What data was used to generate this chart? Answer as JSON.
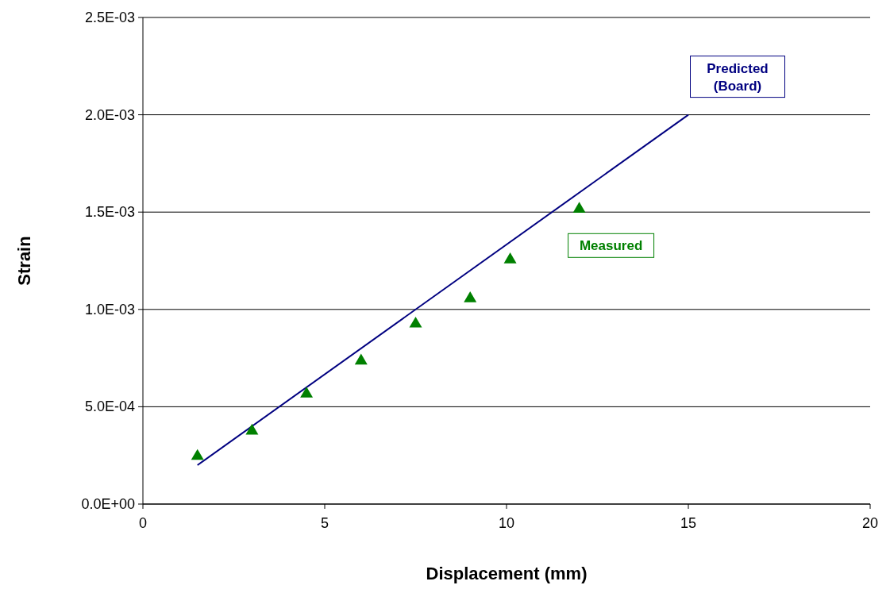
{
  "chart_data": {
    "type": "scatter",
    "xlabel": "Displacement (mm)",
    "ylabel": "Strain",
    "xlim": [
      0,
      20
    ],
    "xticks": [
      0,
      5,
      10,
      15,
      20
    ],
    "ylim": [
      0,
      0.0025
    ],
    "yticks": [
      {
        "value": 0,
        "label": "0.0E+00"
      },
      {
        "value": 0.0005,
        "label": "5.0E-04"
      },
      {
        "value": 0.001,
        "label": "1.0E-03"
      },
      {
        "value": 0.0015,
        "label": "1.5E-03"
      },
      {
        "value": 0.002,
        "label": "2.0E-03"
      },
      {
        "value": 0.0025,
        "label": "2.5E-03"
      }
    ],
    "grid": "y",
    "legend": false,
    "series": [
      {
        "name": "Predicted (Board)",
        "type": "line",
        "color": "#000080",
        "marker": "none",
        "line_style": "solid",
        "x": [
          1.5,
          15
        ],
        "values": [
          0.0002,
          0.002
        ]
      },
      {
        "name": "Measured",
        "color": "#008000",
        "marker": "triangle",
        "x": [
          1.5,
          3,
          4.5,
          6,
          7.5,
          9,
          10.1,
          12
        ],
        "values": [
          0.00025,
          0.00038,
          0.00057,
          0.00074,
          0.00093,
          0.00106,
          0.00126,
          0.00152
        ]
      }
    ]
  }
}
